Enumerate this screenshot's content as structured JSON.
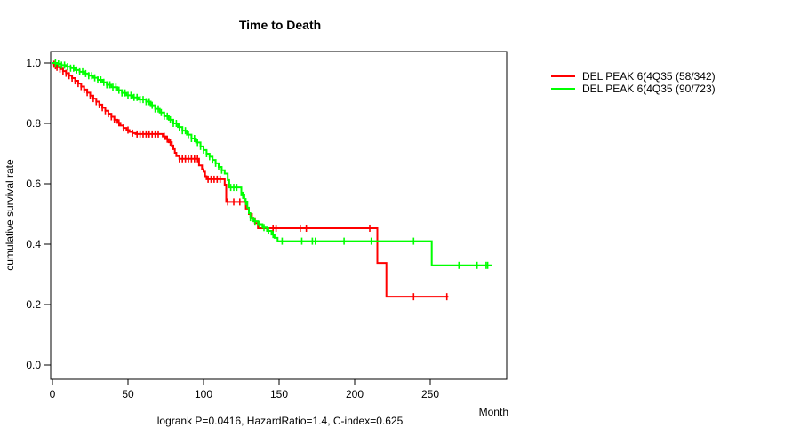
{
  "title": "Time to Death",
  "axes": {
    "x": {
      "label": "Month",
      "ticks": [
        {
          "v": 0,
          "label": "0"
        },
        {
          "v": 50,
          "label": "50"
        },
        {
          "v": 100,
          "label": "100"
        },
        {
          "v": 150,
          "label": "150"
        },
        {
          "v": 200,
          "label": "200"
        },
        {
          "v": 250,
          "label": "250"
        }
      ]
    },
    "y": {
      "label": "cumulative survival rate",
      "ticks": [
        {
          "v": 0.0,
          "label": "0.0"
        },
        {
          "v": 0.2,
          "label": "0.2"
        },
        {
          "v": 0.4,
          "label": "0.4"
        },
        {
          "v": 0.6,
          "label": "0.6"
        },
        {
          "v": 0.8,
          "label": "0.8"
        },
        {
          "v": 1.0,
          "label": "1.0"
        }
      ]
    }
  },
  "footnote": "logrank P=0.0416, HazardRatio=1.4, C-index=0.625",
  "legend": [
    {
      "label": "DEL PEAK  6(4Q35 (58/342)",
      "color": "#ff0000"
    },
    {
      "label": "DEL PEAK  6(4Q35 (90/723)",
      "color": "#00ff00"
    }
  ],
  "chart_data": {
    "type": "line",
    "subtype": "kaplan-meier-step",
    "title": "Time to Death",
    "xlabel": "Month",
    "ylabel": "cumulative survival rate",
    "xlim": [
      0,
      301
    ],
    "ylim": [
      0.0,
      1.0
    ],
    "x_ticks": [
      0,
      50,
      100,
      150,
      200,
      250
    ],
    "y_ticks": [
      0.0,
      0.2,
      0.4,
      0.6,
      0.8,
      1.0
    ],
    "grid": false,
    "legend_position": "right-outside",
    "annotation": "logrank P=0.0416, HazardRatio=1.4, C-index=0.625",
    "series": [
      {
        "name": "DEL PEAK  6(4Q35 (58/342)",
        "color": "#ff0000",
        "end_month": 262,
        "steps": [
          [
            0,
            1.0
          ],
          [
            1,
            0.996
          ],
          [
            2,
            0.991
          ],
          [
            3,
            0.986
          ],
          [
            5,
            0.98
          ],
          [
            7,
            0.973
          ],
          [
            9,
            0.966
          ],
          [
            11,
            0.958
          ],
          [
            13,
            0.95
          ],
          [
            15,
            0.941
          ],
          [
            17,
            0.932
          ],
          [
            19,
            0.922
          ],
          [
            21,
            0.912
          ],
          [
            23,
            0.902
          ],
          [
            25,
            0.892
          ],
          [
            27,
            0.882
          ],
          [
            29,
            0.872
          ],
          [
            31,
            0.862
          ],
          [
            33,
            0.852
          ],
          [
            35,
            0.842
          ],
          [
            37,
            0.832
          ],
          [
            39,
            0.822
          ],
          [
            41,
            0.812
          ],
          [
            43,
            0.802
          ],
          [
            45,
            0.793
          ],
          [
            47,
            0.785
          ],
          [
            49,
            0.778
          ],
          [
            51,
            0.772
          ],
          [
            53,
            0.768
          ],
          [
            55,
            0.765
          ],
          [
            73,
            0.757
          ],
          [
            75,
            0.748
          ],
          [
            77,
            0.738
          ],
          [
            79,
            0.727
          ],
          [
            80,
            0.715
          ],
          [
            81,
            0.703
          ],
          [
            82,
            0.692
          ],
          [
            84,
            0.683
          ],
          [
            97,
            0.661
          ],
          [
            99,
            0.648
          ],
          [
            100,
            0.64
          ],
          [
            101,
            0.625
          ],
          [
            102,
            0.615
          ],
          [
            114,
            0.597
          ],
          [
            115,
            0.54
          ],
          [
            128,
            0.518
          ],
          [
            130,
            0.5
          ],
          [
            132,
            0.486
          ],
          [
            134,
            0.47
          ],
          [
            136,
            0.453
          ],
          [
            215,
            0.338
          ],
          [
            221,
            0.226
          ]
        ],
        "censor_months": [
          1,
          2,
          3,
          5,
          7,
          9,
          11,
          13,
          15,
          17,
          19,
          21,
          23,
          25,
          27,
          29,
          31,
          33,
          35,
          37,
          39,
          41,
          44,
          47,
          50,
          53,
          56,
          58,
          60,
          62,
          64,
          66,
          68,
          70,
          74,
          76,
          78,
          84,
          86,
          88,
          90,
          92,
          94,
          96,
          103,
          105,
          107,
          109,
          111,
          116,
          120,
          124,
          146,
          148,
          164,
          168,
          210,
          239,
          261
        ]
      },
      {
        "name": "DEL PEAK  6(4Q35 (90/723)",
        "color": "#00ff00",
        "end_month": 291,
        "steps": [
          [
            0,
            1.0
          ],
          [
            3,
            0.997
          ],
          [
            6,
            0.993
          ],
          [
            9,
            0.988
          ],
          [
            12,
            0.983
          ],
          [
            15,
            0.977
          ],
          [
            18,
            0.971
          ],
          [
            21,
            0.965
          ],
          [
            24,
            0.958
          ],
          [
            27,
            0.951
          ],
          [
            30,
            0.944
          ],
          [
            33,
            0.936
          ],
          [
            36,
            0.928
          ],
          [
            39,
            0.92
          ],
          [
            43,
            0.91
          ],
          [
            46,
            0.901
          ],
          [
            49,
            0.893
          ],
          [
            53,
            0.886
          ],
          [
            57,
            0.879
          ],
          [
            62,
            0.872
          ],
          [
            65,
            0.86
          ],
          [
            68,
            0.848
          ],
          [
            71,
            0.836
          ],
          [
            74,
            0.824
          ],
          [
            77,
            0.812
          ],
          [
            80,
            0.8
          ],
          [
            83,
            0.788
          ],
          [
            86,
            0.776
          ],
          [
            89,
            0.763
          ],
          [
            92,
            0.75
          ],
          [
            95,
            0.737
          ],
          [
            98,
            0.724
          ],
          [
            100,
            0.712
          ],
          [
            102,
            0.7
          ],
          [
            104,
            0.69
          ],
          [
            106,
            0.679
          ],
          [
            108,
            0.668
          ],
          [
            110,
            0.656
          ],
          [
            112,
            0.645
          ],
          [
            114,
            0.634
          ],
          [
            116,
            0.612
          ],
          [
            117,
            0.588
          ],
          [
            125,
            0.562
          ],
          [
            127,
            0.541
          ],
          [
            129,
            0.521
          ],
          [
            130,
            0.503
          ],
          [
            131,
            0.488
          ],
          [
            133,
            0.476
          ],
          [
            136,
            0.466
          ],
          [
            139,
            0.455
          ],
          [
            142,
            0.444
          ],
          [
            145,
            0.432
          ],
          [
            147,
            0.421
          ],
          [
            149,
            0.41
          ],
          [
            251,
            0.33
          ]
        ],
        "censor_months": [
          2,
          4,
          6,
          8,
          10,
          12,
          14,
          16,
          18,
          20,
          22,
          24,
          26,
          28,
          30,
          32,
          34,
          36,
          38,
          40,
          42,
          44,
          46,
          48,
          50,
          52,
          54,
          56,
          58,
          60,
          62,
          64,
          66,
          68,
          70,
          72,
          74,
          76,
          78,
          80,
          82,
          84,
          86,
          88,
          90,
          92,
          94,
          96,
          98,
          100,
          102,
          104,
          106,
          108,
          110,
          112,
          118,
          120,
          122,
          126,
          128,
          131,
          134,
          137,
          140,
          143,
          146,
          152,
          165,
          172,
          174,
          193,
          211,
          239,
          269,
          281,
          287,
          288
        ]
      }
    ]
  }
}
